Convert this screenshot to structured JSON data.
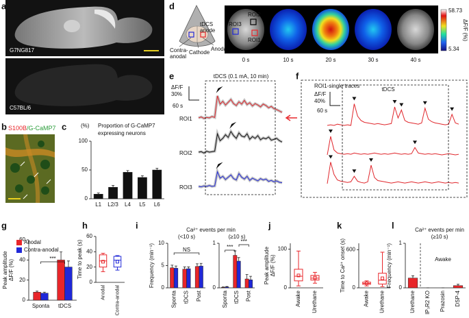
{
  "panel_labels": [
    "a",
    "b",
    "c",
    "d",
    "e",
    "f",
    "g",
    "h",
    "i",
    "j",
    "k",
    "l"
  ],
  "panel_a": {
    "labels": [
      "G7NG817",
      "C57BL/6"
    ]
  },
  "panel_b": {
    "title": [
      "S100B",
      "/G-CaMP7"
    ]
  },
  "panel_d": {
    "roi_labels": [
      "ROI2",
      "ROI3",
      "ROI1"
    ],
    "electrode_labels": {
      "tdcs_anode": [
        "tDCS",
        "anode"
      ],
      "contra_anodal": [
        "Contra-",
        "anodal"
      ],
      "cathode": "Cathode",
      "anodal": "Anodal"
    },
    "times": [
      "0 s",
      "10 s",
      "20 s",
      "30 s",
      "40 s"
    ],
    "colorbar": {
      "max": 58.73,
      "min": 5.34,
      "label": "ΔF/F (%)"
    }
  },
  "chart_data": [
    {
      "type": "bar",
      "title": [
        "Proportion of G-CaMP7",
        "expressing neurons"
      ],
      "ylabel": "(%)",
      "categories": [
        "L1",
        "L2/3",
        "L4",
        "L5",
        "L6"
      ],
      "values": [
        8,
        20,
        46,
        37,
        50
      ],
      "errors": [
        2,
        3,
        3,
        3,
        3
      ],
      "color": "#111111",
      "ylim": [
        0,
        100
      ],
      "yticks": [
        0,
        50,
        100
      ]
    },
    {
      "type": "bar",
      "ylabel": [
        "Peak amplitude",
        "ΔF/F (%)"
      ],
      "categories": [
        "Sponta",
        "tDCS"
      ],
      "series": [
        {
          "name": "Anodal",
          "color": "#e8262a",
          "values": [
            8,
            40
          ],
          "errors": [
            1,
            8
          ]
        },
        {
          "name": "Contra-anodal",
          "color": "#2028d8",
          "values": [
            7,
            33
          ],
          "errors": [
            1,
            6
          ]
        }
      ],
      "ylim": [
        0,
        60
      ],
      "yticks": [
        0,
        20,
        40,
        60
      ],
      "legend": "top-left",
      "annotations": [
        "***"
      ]
    },
    {
      "type": "box",
      "ylabel": "Time to peak (s)",
      "categories": [
        "Anodal",
        "Contra-anodal"
      ],
      "colors": [
        "#e8262a",
        "#2028d8"
      ],
      "boxes": [
        {
          "min": 14,
          "q1": 20,
          "median": 28,
          "q3": 36,
          "max": 38,
          "mean": 27
        },
        {
          "min": 16,
          "q1": 20,
          "median": 29,
          "q3": 34,
          "max": 35,
          "mean": 27
        }
      ],
      "ylim": [
        0,
        60
      ],
      "yticks": [
        0,
        20,
        40,
        60
      ]
    },
    {
      "type": "bar",
      "title": "Ca²⁺ events per min",
      "subtitle": "(<10 s)",
      "ylabel": "Frequency (min⁻¹)",
      "categories": [
        "Sponta",
        "tDCS",
        "Post"
      ],
      "series": [
        {
          "name": "Anodal",
          "color": "#e8262a",
          "values": [
            4.5,
            4.2,
            4.8
          ],
          "errors": [
            0.6,
            0.5,
            0.6
          ]
        },
        {
          "name": "Contra-anodal",
          "color": "#2028d8",
          "values": [
            4.4,
            4.3,
            4.9
          ],
          "errors": [
            0.5,
            0.4,
            0.6
          ]
        }
      ],
      "ylim": [
        0,
        10
      ],
      "yticks": [
        0,
        5,
        10
      ],
      "annotations": [
        "NS"
      ]
    },
    {
      "type": "bar",
      "subtitle": "(≥10 s)",
      "categories": [
        "Sponta",
        "tDCS",
        "Post"
      ],
      "series": [
        {
          "name": "Anodal",
          "color": "#e8262a",
          "values": [
            0.01,
            0.73,
            0.2
          ],
          "errors": [
            0.01,
            0.1,
            0.1
          ]
        },
        {
          "name": "Contra-anodal",
          "color": "#2028d8",
          "values": [
            0.02,
            0.6,
            0.18
          ],
          "errors": [
            0.01,
            0.08,
            0.08
          ]
        }
      ],
      "ylim": [
        0,
        1
      ],
      "yticks": [
        0,
        1
      ],
      "annotations": [
        "***",
        "***"
      ]
    },
    {
      "type": "box",
      "ylabel": [
        "Peak amplitude",
        "ΔF/F (%)"
      ],
      "categories": [
        "Awake",
        "Urethane"
      ],
      "colors": [
        "#e8262a",
        "#e8262a"
      ],
      "boxes": [
        {
          "min": 5,
          "q1": 18,
          "median": 30,
          "q3": 48,
          "max": 95,
          "mean": 32
        },
        {
          "min": 12,
          "q1": 20,
          "median": 25,
          "q3": 32,
          "max": 40,
          "mean": 26
        }
      ],
      "ylim": [
        0,
        115
      ],
      "yticks": [
        0,
        100
      ]
    },
    {
      "type": "box",
      "ylabel": "Time to Ca²⁺ onset (s)",
      "categories": [
        "Awake",
        "Urethane"
      ],
      "colors": [
        "#e8262a",
        "#e8262a"
      ],
      "boxes": [
        {
          "min": 30,
          "q1": 55,
          "median": 70,
          "q3": 90,
          "max": 110,
          "mean": 72
        },
        {
          "min": 20,
          "q1": 60,
          "median": 120,
          "q3": 230,
          "max": 560,
          "mean": 150
        }
      ],
      "ylim": [
        0,
        700
      ],
      "yticks": [
        0,
        600
      ]
    },
    {
      "type": "bar",
      "title": [
        "Ca²⁺ events per min",
        "(≥10 s)"
      ],
      "ylabel": "Frequency (min⁻¹)",
      "categories": [
        "Urethane",
        "IP₃R2 KO",
        "Prazosin",
        "DSP-4"
      ],
      "values": [
        0.22,
        0,
        0,
        0.05
      ],
      "errors": [
        0.05,
        0,
        0,
        0.03
      ],
      "color": "#e8262a",
      "ylim": [
        0,
        1
      ],
      "yticks": [
        0,
        1
      ],
      "annotations": [
        "Awake"
      ]
    },
    {
      "type": "line",
      "title": "tDCS (0.1 mA, 10 min)",
      "scale_labels": [
        "ΔF/F",
        "30%",
        "60 s"
      ],
      "series": [
        {
          "name": "ROI1",
          "color": "#e0262b",
          "values": [
            0,
            2,
            -1,
            1,
            0,
            3,
            1,
            48,
            30,
            36,
            28,
            34,
            40,
            31,
            27,
            35,
            30,
            38,
            29,
            33,
            26,
            31,
            28,
            24,
            30,
            27,
            22,
            25,
            20,
            18,
            15,
            12
          ]
        },
        {
          "name": "ROI2",
          "color": "#111111",
          "values": [
            0,
            1,
            -2,
            2,
            0,
            1,
            2,
            40,
            25,
            30,
            38,
            32,
            45,
            36,
            30,
            42,
            35,
            33,
            40,
            28,
            34,
            30,
            36,
            27,
            31,
            29,
            33,
            26,
            28,
            30,
            25,
            22
          ]
        },
        {
          "name": "ROI3",
          "color": "#2028d8",
          "values": [
            0,
            -1,
            1,
            0,
            2,
            0,
            1,
            32,
            18,
            22,
            15,
            20,
            25,
            17,
            14,
            28,
            20,
            16,
            22,
            13,
            18,
            15,
            12,
            17,
            14,
            16,
            11,
            13,
            10,
            12,
            9,
            8
          ]
        }
      ]
    },
    {
      "type": "line",
      "title": "ROI1-single traces",
      "annotation": "tDCS",
      "scale_labels": [
        "ΔF/F",
        "40%",
        "60 s"
      ],
      "series": [
        {
          "color": "#e0262b",
          "values": [
            0,
            1,
            0,
            2,
            1,
            0,
            1,
            0,
            35,
            15,
            8,
            5,
            4,
            3,
            2,
            3,
            2,
            1,
            2,
            3,
            30,
            12,
            25,
            8,
            5,
            4,
            3,
            2,
            4,
            28,
            10,
            6,
            4,
            3,
            2,
            1,
            2,
            18,
            4,
            2
          ]
        },
        {
          "color": "#e0262b",
          "values": [
            0,
            30,
            8,
            3,
            2,
            1,
            2,
            1,
            3,
            2,
            1,
            2,
            1,
            2,
            3,
            2,
            1,
            2,
            1,
            2,
            3,
            2,
            1,
            2,
            1,
            2,
            12,
            3,
            2,
            1,
            2,
            1,
            2,
            1,
            0,
            1,
            2,
            1,
            0,
            1
          ]
        },
        {
          "color": "#e0262b",
          "values": [
            0,
            35,
            15,
            6,
            4,
            3,
            2,
            3,
            12,
            4,
            2,
            1,
            3,
            30,
            10,
            5,
            4,
            3,
            2,
            1,
            2,
            3,
            2,
            1,
            2,
            3,
            2,
            1,
            2,
            3,
            2,
            1,
            2,
            3,
            2,
            1,
            2,
            1,
            2,
            1
          ]
        }
      ]
    }
  ]
}
